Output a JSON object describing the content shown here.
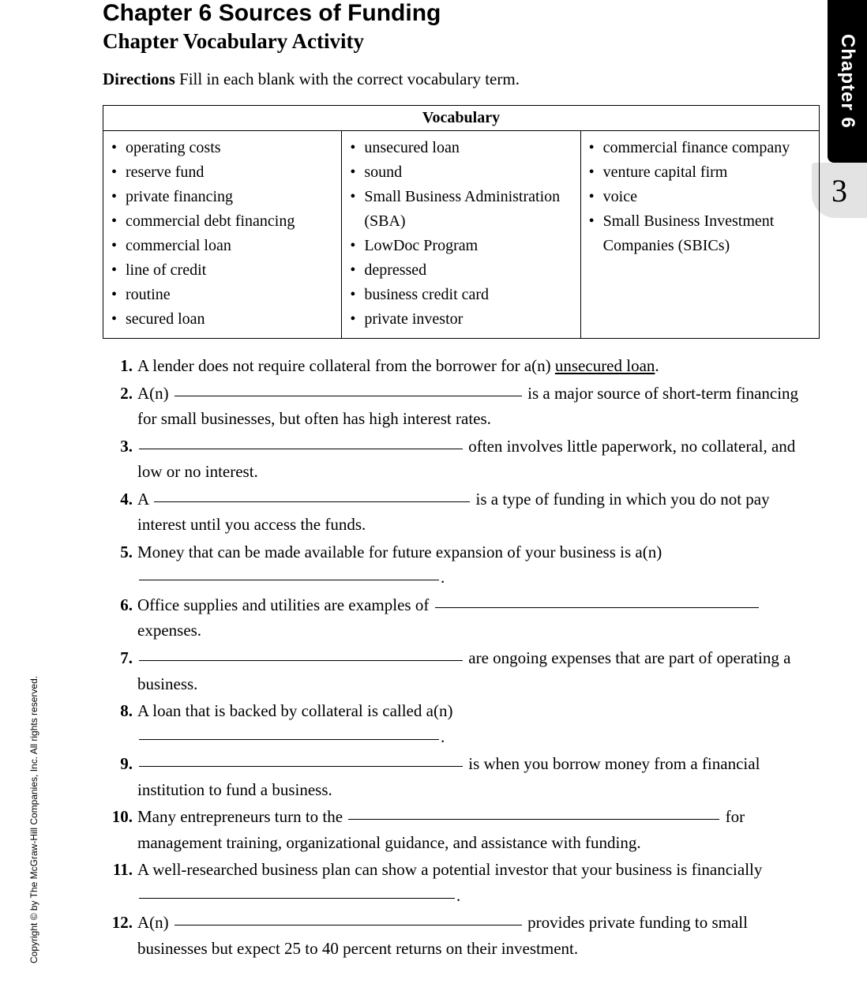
{
  "header": {
    "chapter_title": "Chapter 6  Sources of Funding",
    "subtitle": "Chapter Vocabulary Activity",
    "directions_label": "Directions",
    "directions_text": "  Fill in each blank with the correct vocabulary term."
  },
  "tab": {
    "label": "Chapter 6",
    "page_number": "3"
  },
  "copyright": "Copyright © by The McGraw-Hill Companies, Inc. All rights reserved.",
  "vocab": {
    "title": "Vocabulary",
    "col1": [
      "operating costs",
      "reserve fund",
      "private financing",
      "commercial debt financing",
      "commercial loan",
      "line of credit",
      "routine",
      "secured loan"
    ],
    "col2": [
      "unsecured loan",
      "sound",
      "Small Business Administration (SBA)",
      "LowDoc Program",
      "depressed",
      "business credit card",
      "private investor"
    ],
    "col3": [
      "commercial finance company",
      "venture capital firm",
      "voice",
      "Small Business Investment Companies (SBICs)"
    ]
  },
  "questions": {
    "q1": {
      "num": "1.",
      "pre": "A lender does not require collateral from the borrower for a(n) ",
      "answer": "unsecured loan",
      "post": "."
    },
    "q2": {
      "num": "2.",
      "pre": "A(n) ",
      "post": " is a major source of short-term financing for small businesses, but often has high interest rates."
    },
    "q3": {
      "num": "3.",
      "post": " often involves little paperwork, no collateral, and low or no interest."
    },
    "q4": {
      "num": "4.",
      "pre": "A ",
      "post": " is a type of funding in which you do not pay interest until you access the funds."
    },
    "q5": {
      "num": "5.",
      "pre": "Money that can be made available for future expansion of your business is a(n)",
      "post": "."
    },
    "q6": {
      "num": "6.",
      "pre": "Office supplies and utilities are examples of ",
      "post": " expenses."
    },
    "q7": {
      "num": "7.",
      "post": " are ongoing expenses that are part of operating a business."
    },
    "q8": {
      "num": "8.",
      "pre": "A loan that is backed by collateral is called a(n)",
      "post": "."
    },
    "q9": {
      "num": "9.",
      "post": " is when you borrow money from a financial institution to fund a business."
    },
    "q10": {
      "num": "10.",
      "pre": "Many entrepreneurs turn to the ",
      "post": " for management training, organizational guidance, and assistance with funding."
    },
    "q11": {
      "num": "11.",
      "pre": "A well-researched business plan can show a potential investor that your business is financially ",
      "post": "."
    },
    "q12": {
      "num": "12.",
      "pre": "A(n) ",
      "post": " provides private funding to small businesses but expect 25 to 40 percent returns on their investment."
    }
  },
  "style": {
    "blank_widths": {
      "q2": 440,
      "q3": 410,
      "q4": 400,
      "q5": 380,
      "q6a": 410,
      "q7": 410,
      "q8": 380,
      "q9": 410,
      "q10": 470,
      "q11": 400,
      "q12": 440
    }
  }
}
